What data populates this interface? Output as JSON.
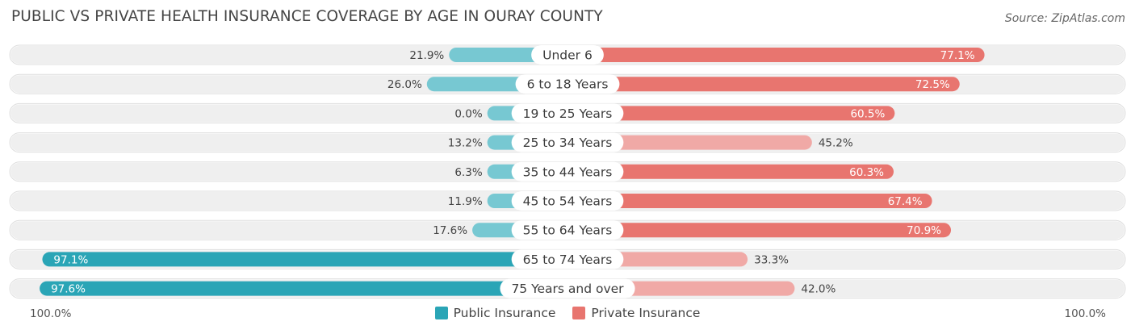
{
  "title": "PUBLIC VS PRIVATE HEALTH INSURANCE COVERAGE BY AGE IN OURAY COUNTY",
  "source": "Source: ZipAtlas.com",
  "axis": {
    "left_label": "100.0%",
    "right_label": "100.0%"
  },
  "legend": {
    "public_label": "Public Insurance",
    "private_label": "Private Insurance"
  },
  "colors": {
    "public_strong": "#2aa5b6",
    "public_light": "#77c8d2",
    "private_strong": "#e8756f",
    "private_light": "#f0a9a6",
    "row_bg": "#efefef"
  },
  "chart_data": {
    "type": "bar",
    "orientation": "diverging-horizontal",
    "title": "PUBLIC VS PRIVATE HEALTH INSURANCE COVERAGE BY AGE IN OURAY COUNTY",
    "categories": [
      "Under 6",
      "6 to 18 Years",
      "19 to 25 Years",
      "25 to 34 Years",
      "35 to 44 Years",
      "45 to 54 Years",
      "55 to 64 Years",
      "65 to 74 Years",
      "75 Years and over"
    ],
    "series": [
      {
        "name": "Public Insurance",
        "values": [
          21.9,
          26.0,
          0.0,
          13.2,
          6.3,
          11.9,
          17.6,
          97.1,
          97.6
        ],
        "labels": [
          "21.9%",
          "26.0%",
          "0.0%",
          "13.2%",
          "6.3%",
          "11.9%",
          "17.6%",
          "97.1%",
          "97.6%"
        ]
      },
      {
        "name": "Private Insurance",
        "values": [
          77.1,
          72.5,
          60.5,
          45.2,
          60.3,
          67.4,
          70.9,
          33.3,
          42.0
        ],
        "labels": [
          "77.1%",
          "72.5%",
          "60.5%",
          "45.2%",
          "60.3%",
          "67.4%",
          "70.9%",
          "33.3%",
          "42.0%"
        ]
      }
    ],
    "xlim": [
      -100,
      100
    ],
    "xlabel_left": "100.0%",
    "xlabel_right": "100.0%"
  }
}
